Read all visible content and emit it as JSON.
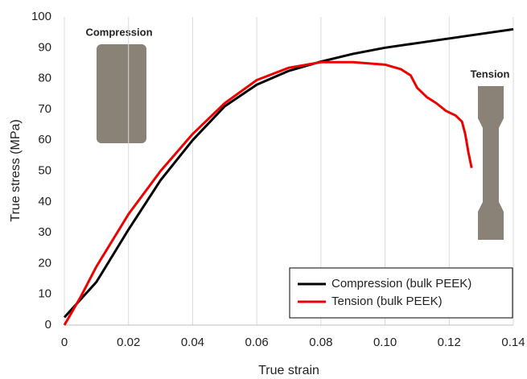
{
  "chart_data": {
    "type": "line",
    "xlabel": "True strain",
    "ylabel": "True stress (MPa)",
    "xlim": [
      0,
      0.14
    ],
    "ylim": [
      0,
      100
    ],
    "xticks": [
      0,
      0.02,
      0.04,
      0.06,
      0.08,
      {
        "value": 0.1,
        "label": "0.10"
      },
      0.12,
      0.14
    ],
    "yticks": [
      0,
      10,
      20,
      30,
      40,
      50,
      60,
      70,
      80,
      90,
      100
    ],
    "grid": "x",
    "legend": "lower right",
    "annotations": [
      "Compression",
      "Tension"
    ],
    "series": [
      {
        "name": "Compression (bulk PEEK)",
        "color": "#000000",
        "x": [
          0,
          0.01,
          0.02,
          0.03,
          0.04,
          0.05,
          0.06,
          0.07,
          0.08,
          0.09,
          0.1,
          0.11,
          0.12,
          0.13,
          0.14
        ],
        "values": [
          2.5,
          14,
          31,
          47,
          60,
          71,
          78,
          82.5,
          85.5,
          88,
          90,
          91.5,
          93,
          94.5,
          96
        ]
      },
      {
        "name": "Tension (bulk PEEK)",
        "color": "#ee0000",
        "x": [
          0,
          0.005,
          0.01,
          0.02,
          0.03,
          0.04,
          0.05,
          0.06,
          0.07,
          0.08,
          0.09,
          0.1,
          0.105,
          0.108,
          0.11,
          0.113,
          0.116,
          0.119,
          0.122,
          0.124,
          0.125,
          0.126,
          0.127
        ],
        "values": [
          0,
          9,
          19,
          36,
          50,
          62,
          72,
          79.5,
          83.5,
          85.3,
          85.3,
          84.5,
          83,
          81,
          77,
          74,
          72,
          69.5,
          68,
          66,
          62,
          56,
          51
        ]
      }
    ]
  }
}
